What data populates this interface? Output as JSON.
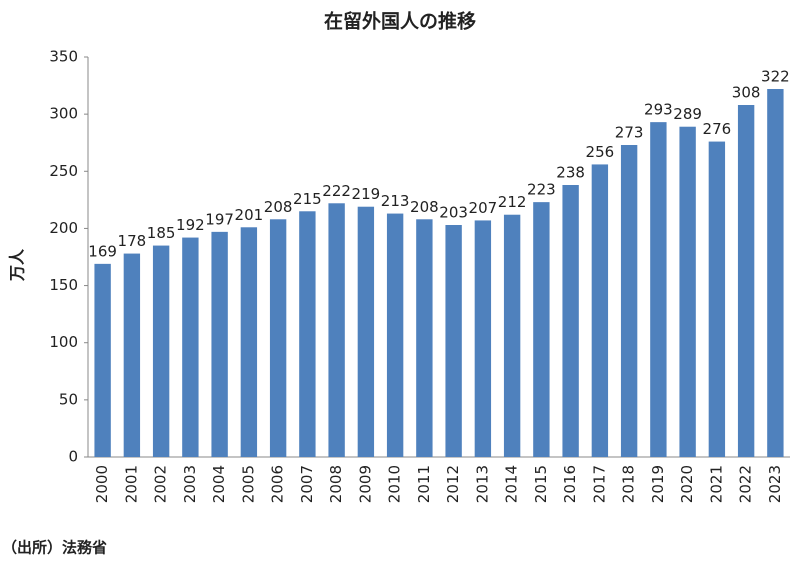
{
  "chart_data": {
    "type": "bar",
    "title": "在留外国人の推移",
    "y_label": "万人",
    "source": "（出所）法務省",
    "categories": [
      "2000",
      "2001",
      "2002",
      "2003",
      "2004",
      "2005",
      "2006",
      "2007",
      "2008",
      "2009",
      "2010",
      "2011",
      "2012",
      "2013",
      "2014",
      "2015",
      "2016",
      "2017",
      "2018",
      "2019",
      "2020",
      "2021",
      "2022",
      "2023"
    ],
    "values": [
      169,
      178,
      185,
      192,
      197,
      201,
      208,
      215,
      222,
      219,
      213,
      208,
      203,
      207,
      212,
      223,
      238,
      256,
      273,
      293,
      289,
      276,
      308,
      322
    ],
    "color": "#4f81bd",
    "ylim": [
      0,
      350
    ],
    "yticks": [
      0,
      50,
      100,
      150,
      200,
      250,
      300,
      350
    ],
    "grid": false
  }
}
